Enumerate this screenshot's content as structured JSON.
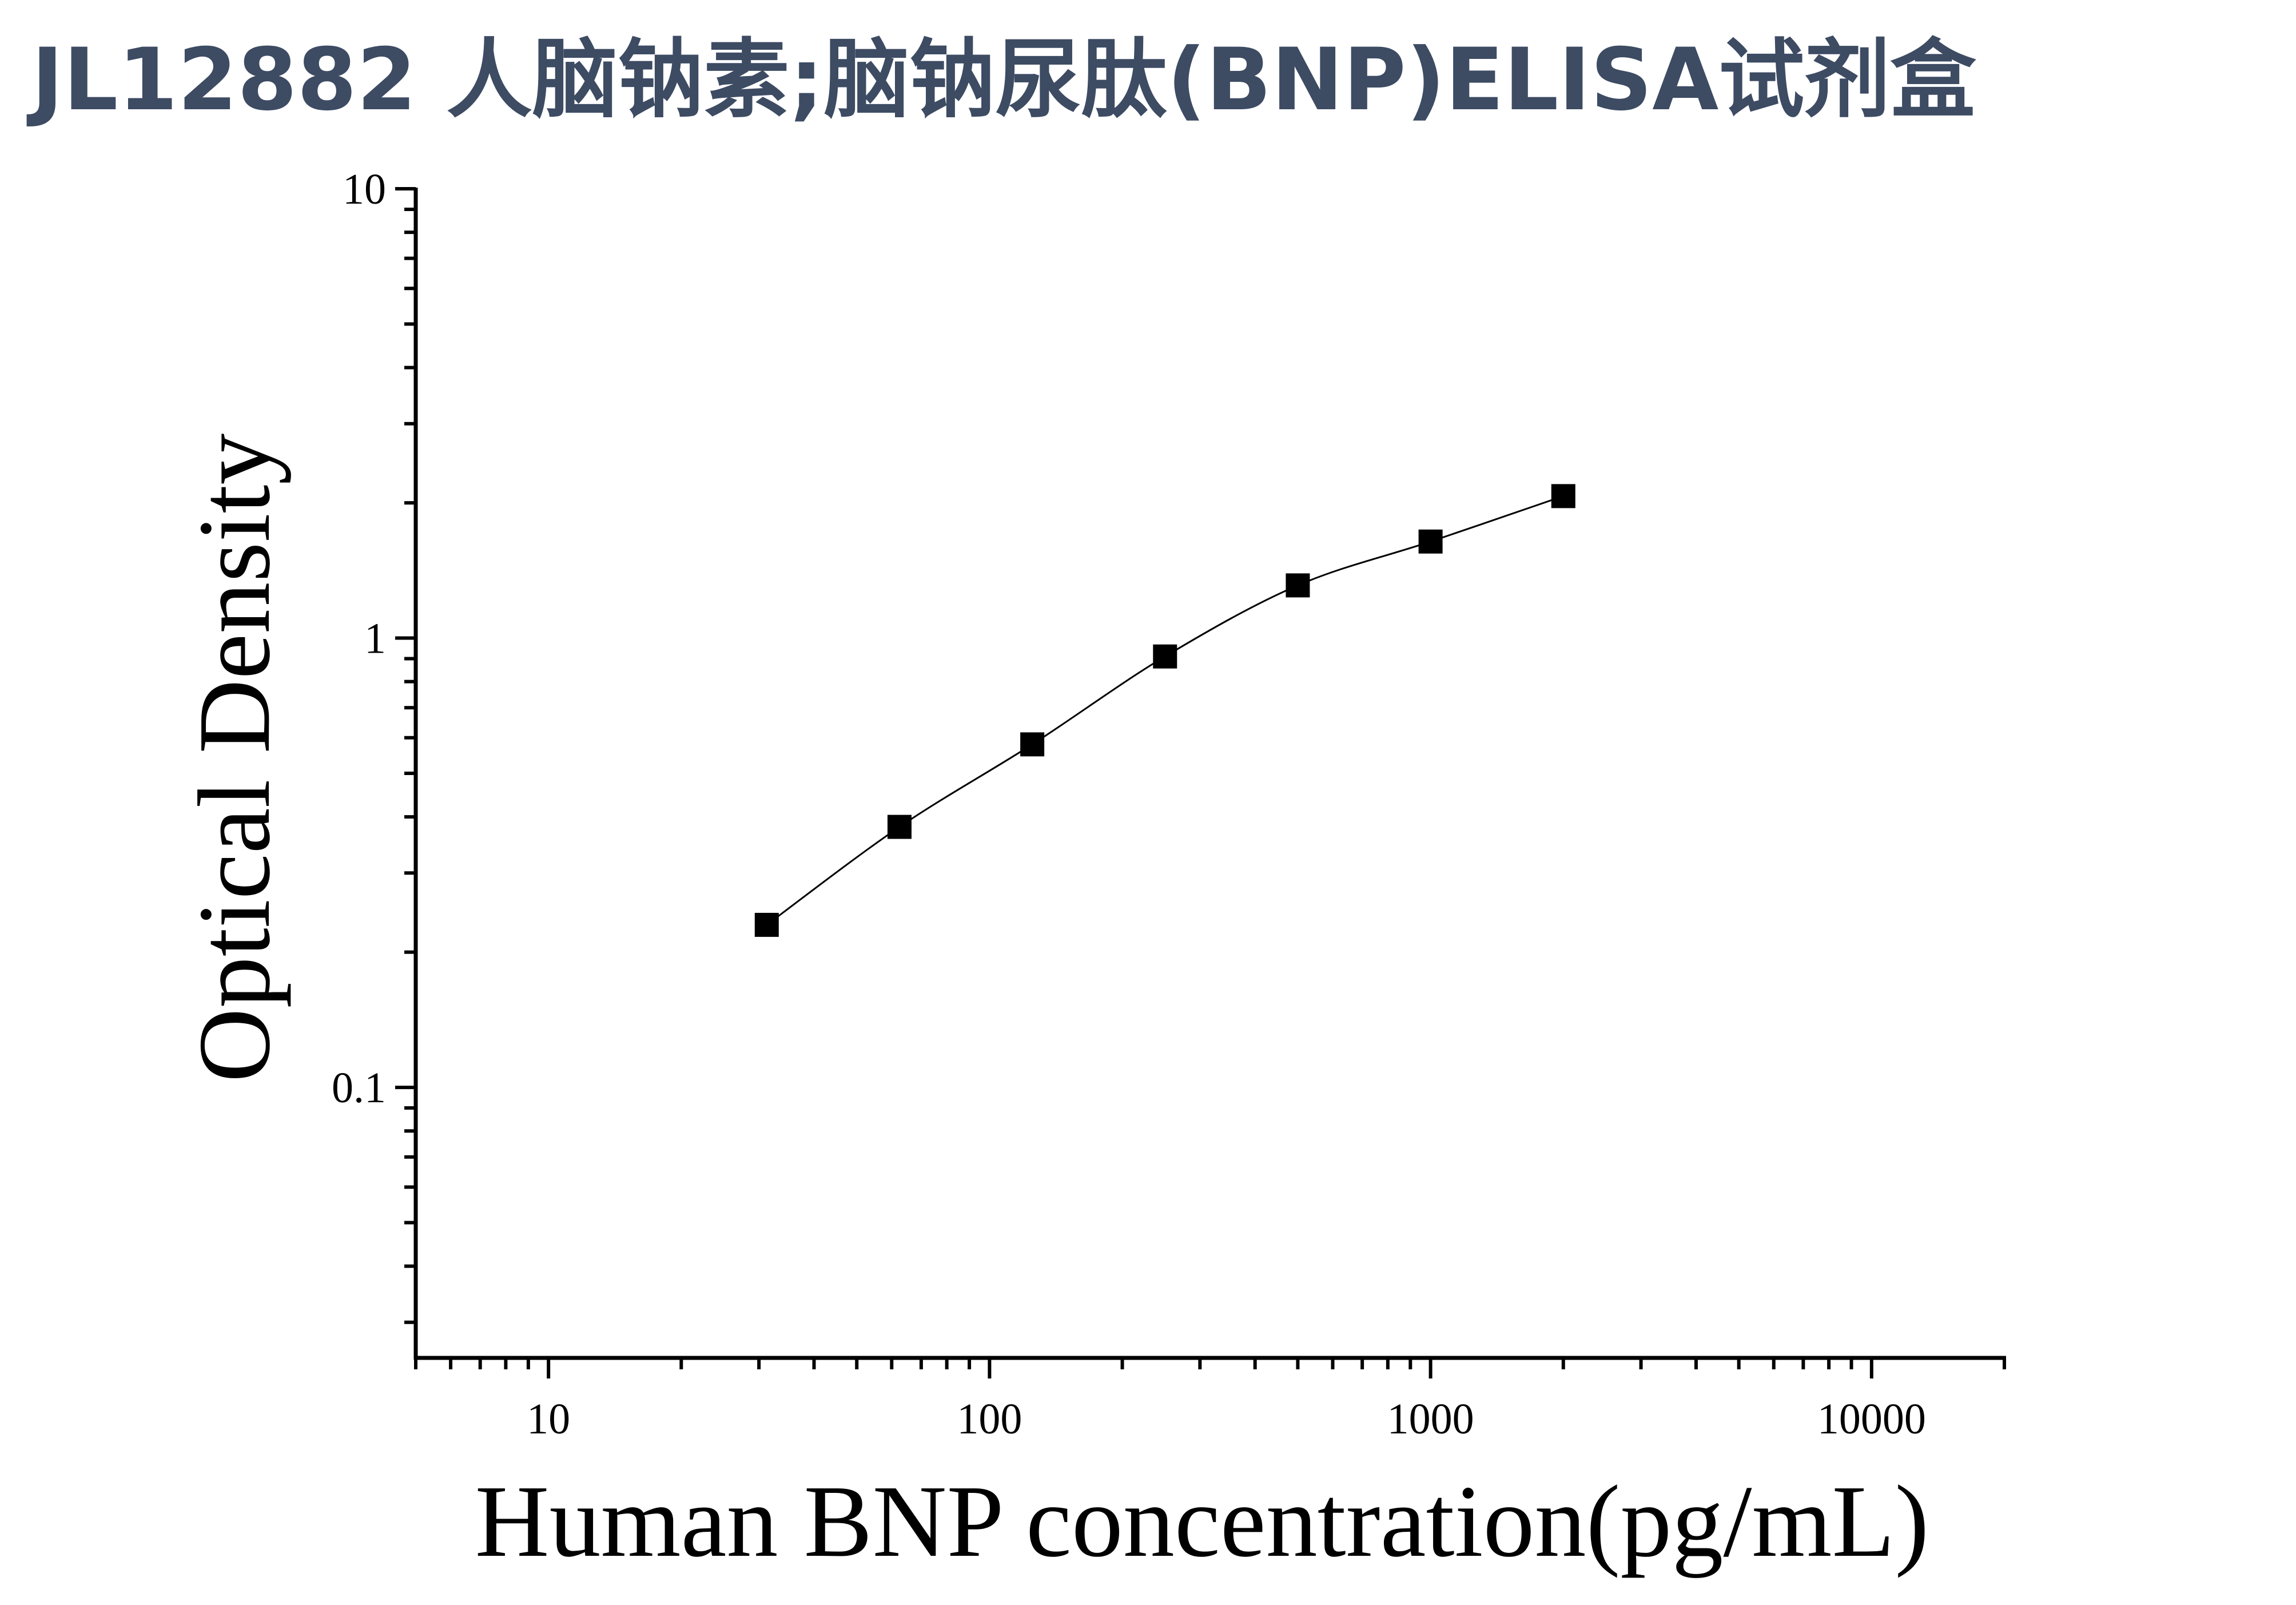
{
  "title": "JL12882 人脑钠素;脑钠尿肽(BNP)ELISA试剂盒",
  "chart_data": {
    "type": "scatter",
    "xlabel": "Human BNP concentration(pg/mL)",
    "ylabel": "Optical Density",
    "x_scale": "log",
    "y_scale": "log",
    "xlim": [
      5,
      20000
    ],
    "ylim": [
      0.025,
      10
    ],
    "x_ticks": [
      {
        "value": 10,
        "label": "10"
      },
      {
        "value": 100,
        "label": "100"
      },
      {
        "value": 1000,
        "label": "1000"
      },
      {
        "value": 10000,
        "label": "10000"
      }
    ],
    "y_ticks": [
      {
        "value": 0.1,
        "label": "0.1"
      },
      {
        "value": 1,
        "label": "1"
      },
      {
        "value": 10,
        "label": "10"
      }
    ],
    "series": [
      {
        "x": [
          31.25,
          62.5,
          125,
          250,
          500,
          1000,
          2000
        ],
        "y": [
          0.23,
          0.38,
          0.58,
          0.91,
          1.31,
          1.64,
          2.07
        ]
      }
    ],
    "fit_curve": true,
    "marker": "square",
    "color": "#000000",
    "grid": false
  }
}
